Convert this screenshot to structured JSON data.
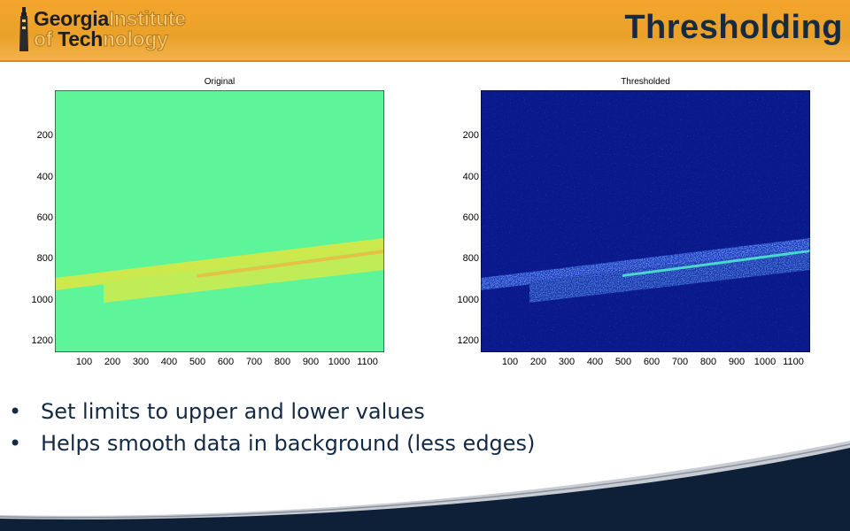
{
  "header": {
    "logo": {
      "line1_dark": "Georgia",
      "line1_light": "Institute",
      "line2_light_a": "of",
      "line2_dark": "Tech",
      "line2_light_b": "nology"
    },
    "title": "Thresholding"
  },
  "figures": [
    {
      "title": "Original",
      "y_ticks": [
        "200",
        "400",
        "600",
        "800",
        "1000",
        "1200"
      ],
      "x_ticks": [
        "100",
        "200",
        "300",
        "400",
        "500",
        "600",
        "700",
        "800",
        "900",
        "1000",
        "1100"
      ]
    },
    {
      "title": "Thresholded",
      "y_ticks": [
        "200",
        "400",
        "600",
        "800",
        "1000",
        "1200"
      ],
      "x_ticks": [
        "100",
        "200",
        "300",
        "400",
        "500",
        "600",
        "700",
        "800",
        "900",
        "1000",
        "1100"
      ]
    }
  ],
  "bullets": [
    "Set limits to upper and lower values",
    "Helps smooth data in background (less edges)"
  ],
  "colors": {
    "header_orange": "#f0a42e",
    "title_navy": "#162a40",
    "original_background": "#5ef59a",
    "thresholded_background": "#0a1a8c",
    "footer_navy": "#0e2038"
  }
}
